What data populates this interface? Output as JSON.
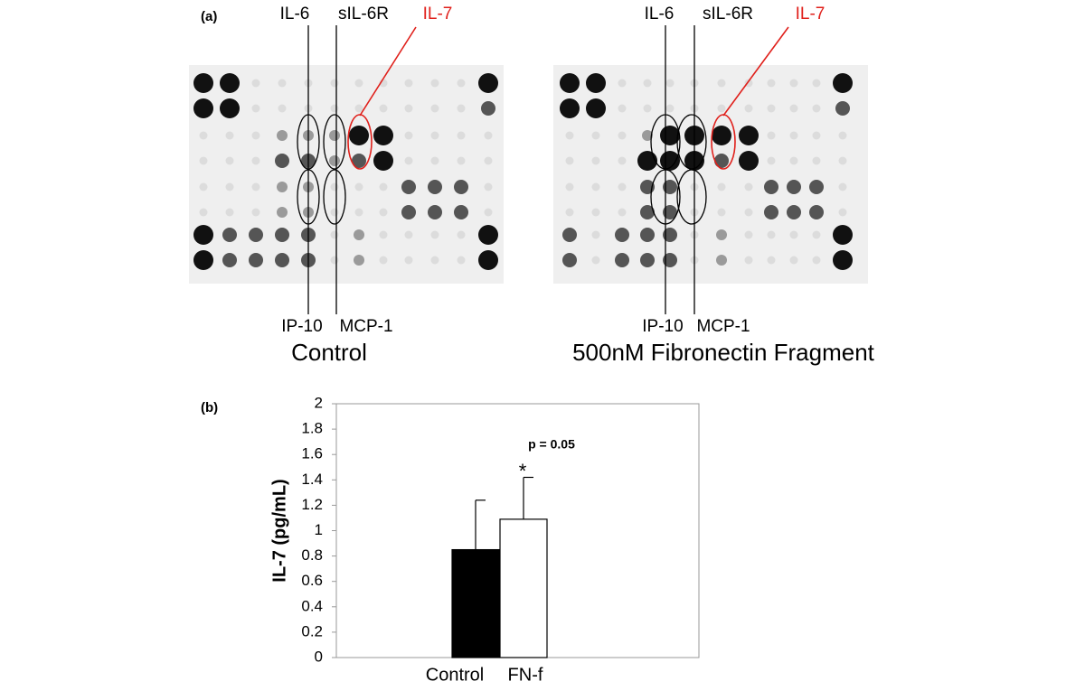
{
  "panel_a": {
    "label": "(a)",
    "blots": [
      {
        "caption": "Control",
        "top_labels": [
          "IL-6",
          "sIL-6R",
          "IL-7"
        ],
        "bottom_labels": [
          "IP-10",
          "MCP-1"
        ]
      },
      {
        "caption": "500nM Fibronectin Fragment",
        "top_labels": [
          "IL-6",
          "sIL-6R",
          "IL-7"
        ],
        "bottom_labels": [
          "IP-10",
          "MCP-1"
        ]
      }
    ]
  },
  "panel_b": {
    "label": "(b)"
  },
  "chart_data": {
    "type": "bar",
    "ylabel": "IL-7 (pg/mL)",
    "categories": [
      "Control",
      "FN-f"
    ],
    "values": [
      0.85,
      1.09
    ],
    "errors": [
      0.39,
      0.33
    ],
    "colors": [
      "#000000",
      "#ffffff"
    ],
    "edgecolor": "#000000",
    "ylim": [
      0,
      2
    ],
    "yticks": [
      0,
      0.2,
      0.4,
      0.6,
      0.8,
      1,
      1.2,
      1.4,
      1.6,
      1.8,
      2
    ],
    "annotations": [
      "p = 0.05",
      "*"
    ]
  }
}
